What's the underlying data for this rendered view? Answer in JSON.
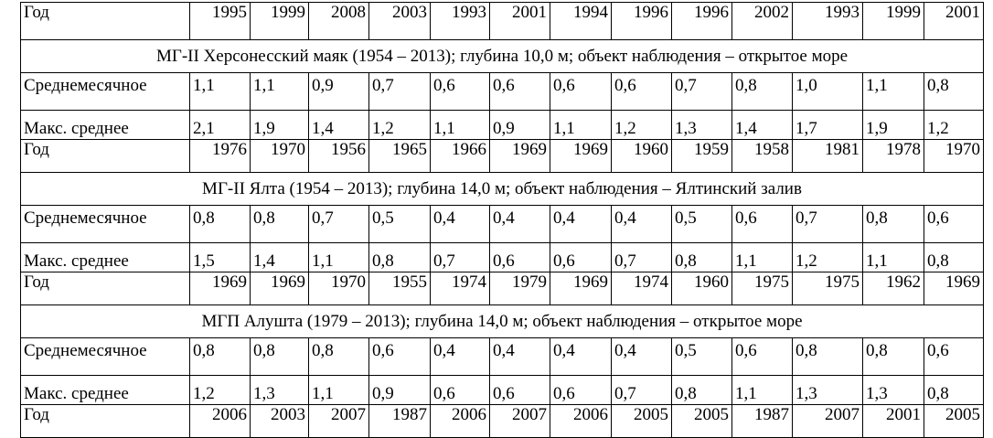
{
  "table": {
    "header": [
      "Год",
      "1995",
      "1999",
      "2008",
      "2003",
      "1993",
      "2001",
      "1994",
      "1996",
      "1996",
      "2002",
      "1993",
      "1999",
      "2001"
    ],
    "sections": [
      {
        "title": "МГ-II Херсонесский маяк (1954 – 2013); глубина 10,0 м; объект наблюдения – открытое море",
        "rows": [
          [
            "Среднемесячное",
            "1,1",
            "1,1",
            "0,9",
            "0,7",
            "0,6",
            "0,6",
            "0,6",
            "0,6",
            "0,7",
            "0,8",
            "1,0",
            "1,1",
            "0,8"
          ],
          [
            "Макс. среднее",
            "2,1",
            "1,9",
            "1,4",
            "1,2",
            "1,1",
            "0,9",
            "1,1",
            "1,2",
            "1,3",
            "1,4",
            "1,7",
            "1,9",
            "1,2"
          ],
          [
            "Год",
            "1976",
            "1970",
            "1956",
            "1965",
            "1966",
            "1969",
            "1969",
            "1960",
            "1959",
            "1958",
            "1981",
            "1978",
            "1970"
          ]
        ]
      },
      {
        "title": "МГ-II Ялта (1954 – 2013); глубина 14,0 м; объект наблюдения – Ялтинский залив",
        "rows": [
          [
            "Среднемесячное",
            "0,8",
            "0,8",
            "0,7",
            "0,5",
            "0,4",
            "0,4",
            "0,4",
            "0,4",
            "0,5",
            "0,6",
            "0,7",
            "0,8",
            "0,6"
          ],
          [
            "Макс. среднее",
            "1,5",
            "1,4",
            "1,1",
            "0,8",
            "0,7",
            "0,6",
            "0,6",
            "0,7",
            "0,8",
            "1,1",
            "1,2",
            "1,1",
            "0,8"
          ],
          [
            "Год",
            "1969",
            "1969",
            "1970",
            "1955",
            "1974",
            "1979",
            "1969",
            "1974",
            "1960",
            "1975",
            "1975",
            "1962",
            "1969"
          ]
        ]
      },
      {
        "title": "МГП Алушта (1979 – 2013); глубина 14,0 м; объект наблюдения –  открытое море",
        "rows": [
          [
            "Среднемесячное",
            "0,8",
            "0,8",
            "0,8",
            "0,6",
            "0,4",
            "0,4",
            "0,4",
            "0,4",
            "0,5",
            "0,6",
            "0,8",
            "0,8",
            "0,6"
          ],
          [
            "Макс. среднее",
            "1,2",
            "1,3",
            "1,1",
            "0,9",
            "0,6",
            "0,6",
            "0,6",
            "0,7",
            "0,8",
            "1,1",
            "1,3",
            "1,3",
            "0,8"
          ],
          [
            "Год",
            "2006",
            "2003",
            "2007",
            "1987",
            "2006",
            "2007",
            "2006",
            "2005",
            "2005",
            "1987",
            "2007",
            "2001",
            "2005"
          ]
        ]
      }
    ]
  }
}
